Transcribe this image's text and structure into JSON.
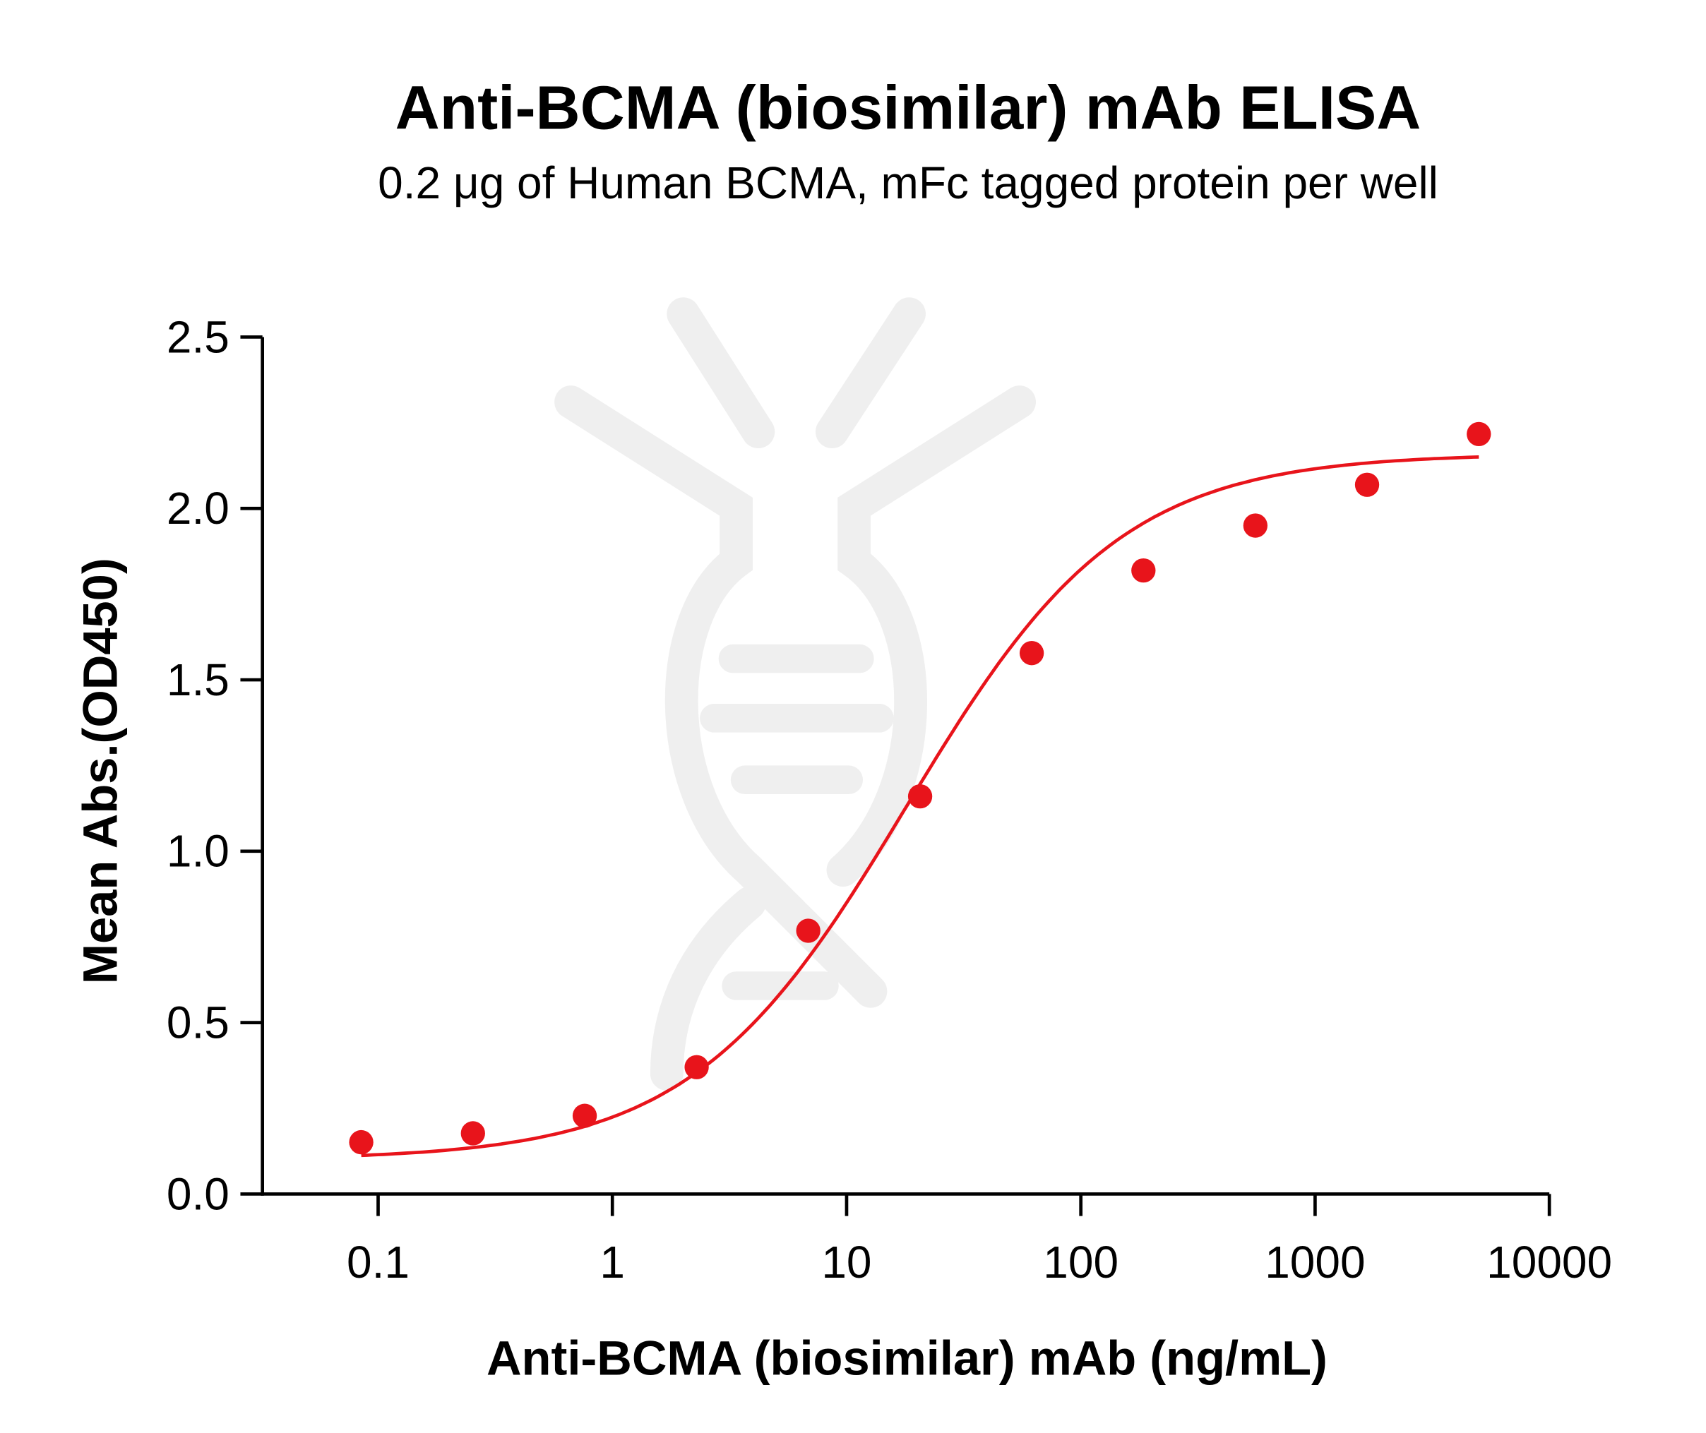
{
  "chart_data": {
    "type": "scatter",
    "title": "Anti-BCMA (biosimilar) mAb ELISA",
    "subtitle": "0.2 μg of Human BCMA, mFc tagged protein per well",
    "xlabel": "Anti-BCMA (biosimilar) mAb (ng/mL)",
    "ylabel": "Mean Abs.(OD450)",
    "x_scale": "log",
    "xlim": [
      0.05,
      10000
    ],
    "ylim": [
      0,
      2.5
    ],
    "x_ticks": [
      "0.1",
      "1",
      "10",
      "100",
      "1000",
      "10000"
    ],
    "x_tick_values": [
      0.1,
      1,
      10,
      100,
      1000,
      10000
    ],
    "y_ticks": [
      "0.0",
      "0.5",
      "1.0",
      "1.5",
      "2.0",
      "2.5"
    ],
    "y_tick_values": [
      0,
      0.5,
      1.0,
      1.5,
      2.0,
      2.5
    ],
    "grid": false,
    "color": "#e8141b",
    "series": [
      {
        "points": {
          "x": [
            0.0847,
            0.254,
            0.762,
            2.29,
            6.86,
            20.6,
            61.7,
            185,
            556,
            1667,
            5000
          ],
          "y": [
            0.151,
            0.177,
            0.228,
            0.37,
            0.768,
            1.16,
            1.578,
            1.819,
            1.95,
            2.069,
            2.217
          ]
        },
        "fit": {
          "model": "4PL",
          "bottom": 0.1,
          "top": 2.16,
          "ec50": 18,
          "hill": 0.95
        }
      }
    ]
  }
}
